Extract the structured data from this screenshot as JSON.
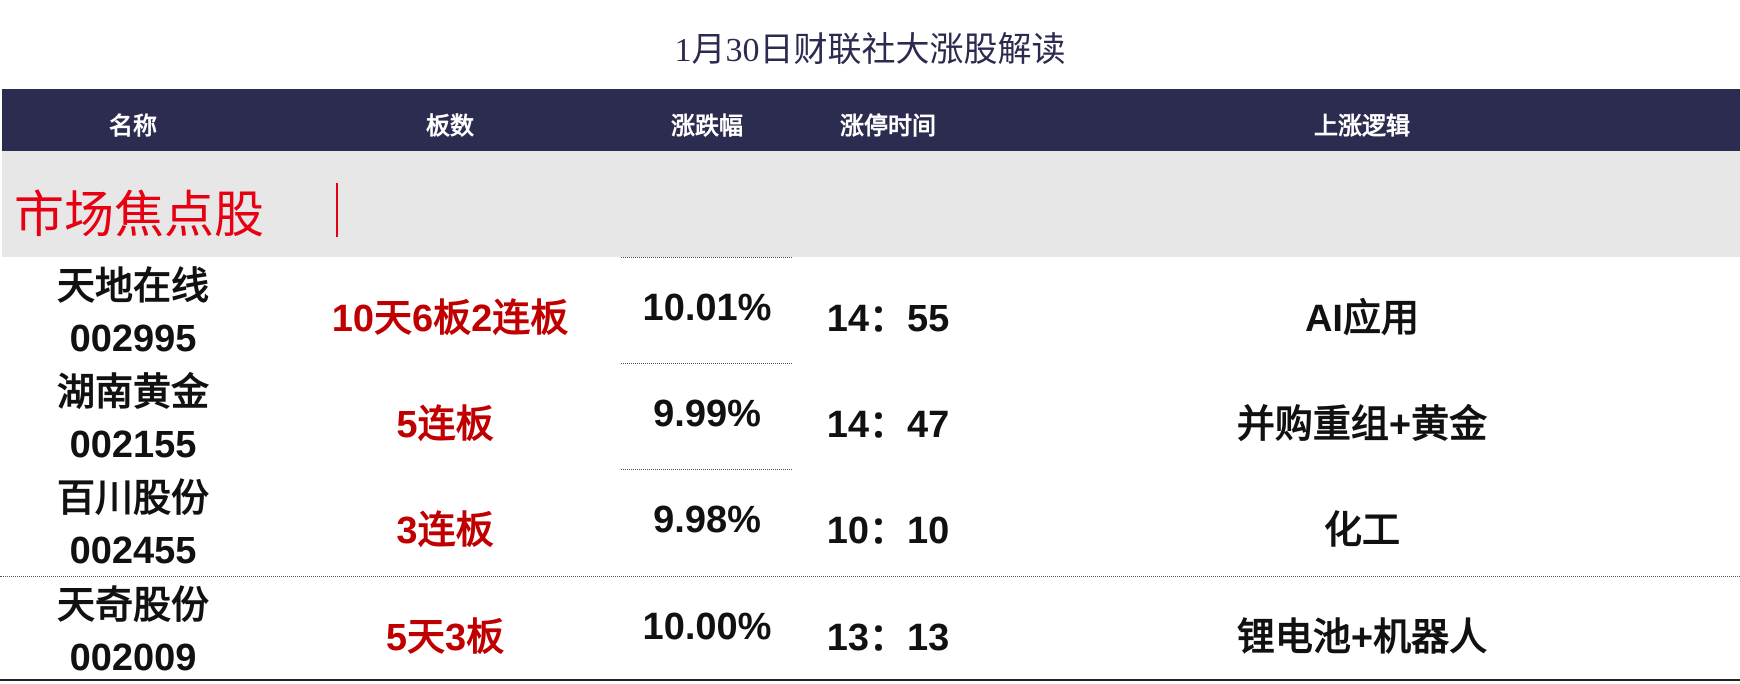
{
  "title": "1月30日财联社大涨股解读",
  "headers": {
    "name": "名称",
    "board": "板数",
    "change": "涨跌幅",
    "limit_time": "涨停时间",
    "logic": "上涨逻辑"
  },
  "section": "市场焦点股",
  "rows": [
    {
      "name": "天地在线",
      "code": "002995",
      "board": "10天6板2连板",
      "change": "10.01%",
      "time": "14：55",
      "logic": "AI应用"
    },
    {
      "name": "湖南黄金",
      "code": "002155",
      "board": "5连板",
      "change": "9.99%",
      "time": "14：47",
      "logic": "并购重组+黄金"
    },
    {
      "name": "百川股份",
      "code": "002455",
      "board": "3连板",
      "change": "9.98%",
      "time": "10：10",
      "logic": "化工"
    },
    {
      "name": "天奇股份",
      "code": "002009",
      "board": "5天3板",
      "change": "10.00%",
      "time": "13：13",
      "logic": "锂电池+机器人"
    }
  ],
  "colors": {
    "header_bg": "#2c2b50",
    "section_red": "#e60012",
    "board_red": "#c00000",
    "band_bg": "#e7e7e7"
  }
}
